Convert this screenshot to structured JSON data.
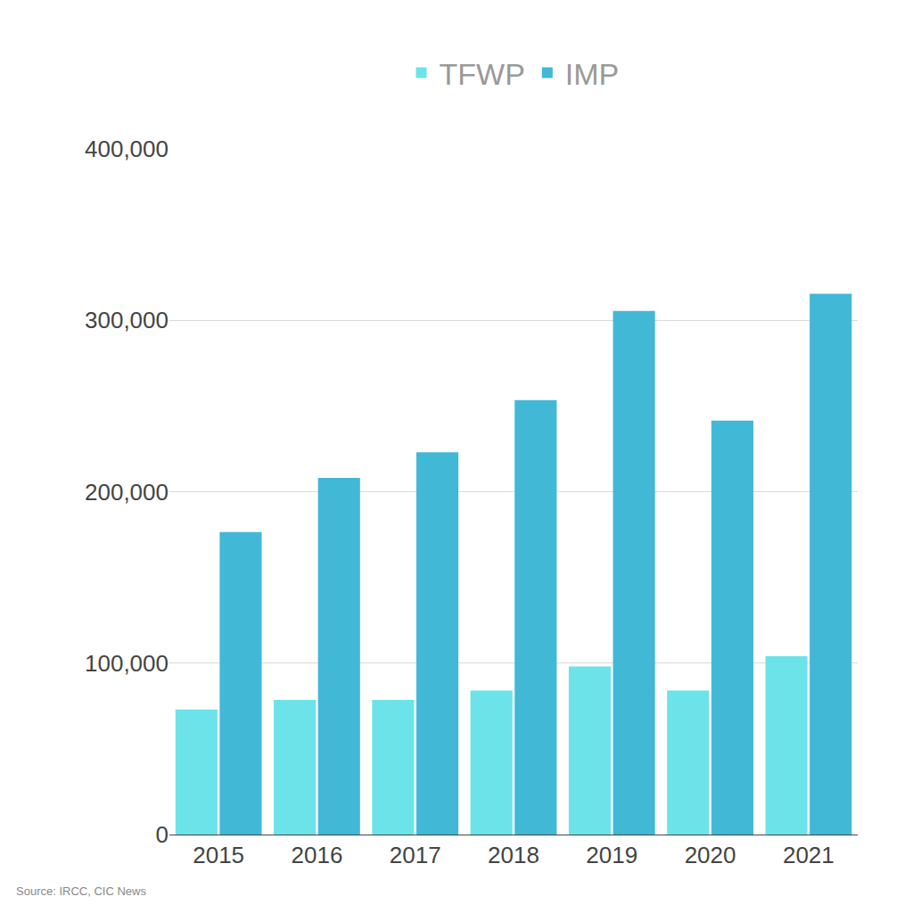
{
  "chart_data": {
    "type": "bar",
    "categories": [
      "2015",
      "2016",
      "2017",
      "2018",
      "2019",
      "2020",
      "2021"
    ],
    "series": [
      {
        "name": "TFWP",
        "color": "#6ce3e8",
        "values": [
          73000,
          78500,
          78500,
          84000,
          98000,
          84000,
          104000
        ]
      },
      {
        "name": "IMP",
        "color": "#41b8d5",
        "values": [
          176500,
          208000,
          223000,
          253500,
          305500,
          241500,
          315500
        ]
      }
    ],
    "ylim": [
      0,
      400000
    ],
    "yticks": [
      0,
      {
        "value": 100000,
        "label": "100,000"
      },
      {
        "value": 200000,
        "label": "200,000"
      },
      {
        "value": 300000,
        "label": "300,000"
      },
      {
        "value": 400000,
        "label": "400,000"
      }
    ],
    "grid": true,
    "legend": "top",
    "annotations": [
      "Source: IRCC, CIC News"
    ]
  }
}
